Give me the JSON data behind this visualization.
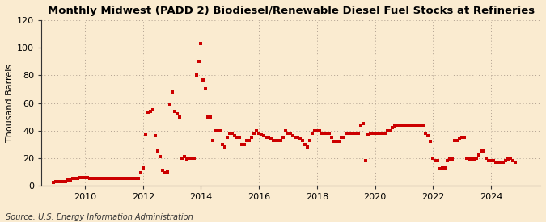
{
  "title": "Monthly Midwest (PADD 2) Biodiesel/Renewable Diesel Fuel Stocks at Refineries",
  "ylabel": "Thousand Barrels",
  "source": "Source: U.S. Energy Information Administration",
  "background_color": "#faebd0",
  "marker_color": "#cc0000",
  "ylim": [
    0,
    120
  ],
  "yticks": [
    0,
    20,
    40,
    60,
    80,
    100,
    120
  ],
  "xlim_start": 2008.5,
  "xlim_end": 2025.7,
  "xticks": [
    2010,
    2012,
    2014,
    2016,
    2018,
    2020,
    2022,
    2024
  ],
  "data": [
    [
      2008.917,
      2
    ],
    [
      2009.0,
      3
    ],
    [
      2009.083,
      3
    ],
    [
      2009.167,
      3
    ],
    [
      2009.25,
      3
    ],
    [
      2009.333,
      3
    ],
    [
      2009.417,
      4
    ],
    [
      2009.5,
      4
    ],
    [
      2009.583,
      5
    ],
    [
      2009.667,
      5
    ],
    [
      2009.75,
      5
    ],
    [
      2009.833,
      6
    ],
    [
      2009.917,
      6
    ],
    [
      2010.0,
      6
    ],
    [
      2010.083,
      6
    ],
    [
      2010.167,
      5
    ],
    [
      2010.25,
      5
    ],
    [
      2010.333,
      5
    ],
    [
      2010.417,
      5
    ],
    [
      2010.5,
      5
    ],
    [
      2010.583,
      5
    ],
    [
      2010.667,
      5
    ],
    [
      2010.75,
      5
    ],
    [
      2010.833,
      5
    ],
    [
      2010.917,
      5
    ],
    [
      2011.0,
      5
    ],
    [
      2011.083,
      5
    ],
    [
      2011.167,
      5
    ],
    [
      2011.25,
      5
    ],
    [
      2011.333,
      5
    ],
    [
      2011.417,
      5
    ],
    [
      2011.5,
      5
    ],
    [
      2011.583,
      5
    ],
    [
      2011.667,
      5
    ],
    [
      2011.75,
      5
    ],
    [
      2011.833,
      5
    ],
    [
      2011.917,
      9
    ],
    [
      2012.0,
      13
    ],
    [
      2012.083,
      37
    ],
    [
      2012.167,
      53
    ],
    [
      2012.25,
      54
    ],
    [
      2012.333,
      55
    ],
    [
      2012.417,
      36
    ],
    [
      2012.5,
      25
    ],
    [
      2012.583,
      21
    ],
    [
      2012.667,
      11
    ],
    [
      2012.75,
      9
    ],
    [
      2012.833,
      10
    ],
    [
      2012.917,
      59
    ],
    [
      2013.0,
      68
    ],
    [
      2013.083,
      54
    ],
    [
      2013.167,
      52
    ],
    [
      2013.25,
      50
    ],
    [
      2013.333,
      20
    ],
    [
      2013.417,
      21
    ],
    [
      2013.5,
      19
    ],
    [
      2013.583,
      20
    ],
    [
      2013.667,
      20
    ],
    [
      2013.75,
      20
    ],
    [
      2013.833,
      80
    ],
    [
      2013.917,
      90
    ],
    [
      2014.0,
      103
    ],
    [
      2014.083,
      77
    ],
    [
      2014.167,
      70
    ],
    [
      2014.25,
      50
    ],
    [
      2014.333,
      50
    ],
    [
      2014.417,
      33
    ],
    [
      2014.5,
      40
    ],
    [
      2014.583,
      40
    ],
    [
      2014.667,
      40
    ],
    [
      2014.75,
      30
    ],
    [
      2014.833,
      28
    ],
    [
      2014.917,
      35
    ],
    [
      2015.0,
      38
    ],
    [
      2015.083,
      38
    ],
    [
      2015.167,
      36
    ],
    [
      2015.25,
      35
    ],
    [
      2015.333,
      35
    ],
    [
      2015.417,
      30
    ],
    [
      2015.5,
      30
    ],
    [
      2015.583,
      33
    ],
    [
      2015.667,
      33
    ],
    [
      2015.75,
      35
    ],
    [
      2015.833,
      38
    ],
    [
      2015.917,
      40
    ],
    [
      2016.0,
      38
    ],
    [
      2016.083,
      37
    ],
    [
      2016.167,
      36
    ],
    [
      2016.25,
      35
    ],
    [
      2016.333,
      35
    ],
    [
      2016.417,
      34
    ],
    [
      2016.5,
      33
    ],
    [
      2016.583,
      33
    ],
    [
      2016.667,
      33
    ],
    [
      2016.75,
      33
    ],
    [
      2016.833,
      35
    ],
    [
      2016.917,
      40
    ],
    [
      2017.0,
      38
    ],
    [
      2017.083,
      38
    ],
    [
      2017.167,
      36
    ],
    [
      2017.25,
      35
    ],
    [
      2017.333,
      35
    ],
    [
      2017.417,
      34
    ],
    [
      2017.5,
      33
    ],
    [
      2017.583,
      30
    ],
    [
      2017.667,
      28
    ],
    [
      2017.75,
      33
    ],
    [
      2017.833,
      38
    ],
    [
      2017.917,
      40
    ],
    [
      2018.0,
      40
    ],
    [
      2018.083,
      40
    ],
    [
      2018.167,
      38
    ],
    [
      2018.25,
      38
    ],
    [
      2018.333,
      38
    ],
    [
      2018.417,
      38
    ],
    [
      2018.5,
      35
    ],
    [
      2018.583,
      32
    ],
    [
      2018.667,
      32
    ],
    [
      2018.75,
      32
    ],
    [
      2018.833,
      35
    ],
    [
      2018.917,
      35
    ],
    [
      2019.0,
      38
    ],
    [
      2019.083,
      38
    ],
    [
      2019.167,
      38
    ],
    [
      2019.25,
      38
    ],
    [
      2019.333,
      38
    ],
    [
      2019.417,
      38
    ],
    [
      2019.5,
      44
    ],
    [
      2019.583,
      45
    ],
    [
      2019.667,
      18
    ],
    [
      2019.75,
      37
    ],
    [
      2019.833,
      38
    ],
    [
      2019.917,
      38
    ],
    [
      2020.0,
      38
    ],
    [
      2020.083,
      38
    ],
    [
      2020.167,
      38
    ],
    [
      2020.25,
      38
    ],
    [
      2020.333,
      38
    ],
    [
      2020.417,
      40
    ],
    [
      2020.5,
      40
    ],
    [
      2020.583,
      42
    ],
    [
      2020.667,
      43
    ],
    [
      2020.75,
      44
    ],
    [
      2020.833,
      44
    ],
    [
      2020.917,
      44
    ],
    [
      2021.0,
      44
    ],
    [
      2021.083,
      44
    ],
    [
      2021.167,
      44
    ],
    [
      2021.25,
      44
    ],
    [
      2021.333,
      44
    ],
    [
      2021.417,
      44
    ],
    [
      2021.5,
      44
    ],
    [
      2021.583,
      44
    ],
    [
      2021.667,
      44
    ],
    [
      2021.75,
      38
    ],
    [
      2021.833,
      36
    ],
    [
      2021.917,
      32
    ],
    [
      2022.0,
      20
    ],
    [
      2022.083,
      18
    ],
    [
      2022.167,
      18
    ],
    [
      2022.25,
      12
    ],
    [
      2022.333,
      13
    ],
    [
      2022.417,
      13
    ],
    [
      2022.5,
      18
    ],
    [
      2022.583,
      19
    ],
    [
      2022.667,
      19
    ],
    [
      2022.75,
      33
    ],
    [
      2022.833,
      33
    ],
    [
      2022.917,
      34
    ],
    [
      2023.0,
      35
    ],
    [
      2023.083,
      35
    ],
    [
      2023.167,
      20
    ],
    [
      2023.25,
      19
    ],
    [
      2023.333,
      19
    ],
    [
      2023.417,
      19
    ],
    [
      2023.5,
      20
    ],
    [
      2023.583,
      22
    ],
    [
      2023.667,
      25
    ],
    [
      2023.75,
      25
    ],
    [
      2023.833,
      20
    ],
    [
      2023.917,
      18
    ],
    [
      2024.0,
      18
    ],
    [
      2024.083,
      18
    ],
    [
      2024.167,
      17
    ],
    [
      2024.25,
      17
    ],
    [
      2024.333,
      17
    ],
    [
      2024.417,
      17
    ],
    [
      2024.5,
      18
    ],
    [
      2024.583,
      19
    ],
    [
      2024.667,
      20
    ],
    [
      2024.75,
      18
    ],
    [
      2024.833,
      17
    ]
  ]
}
